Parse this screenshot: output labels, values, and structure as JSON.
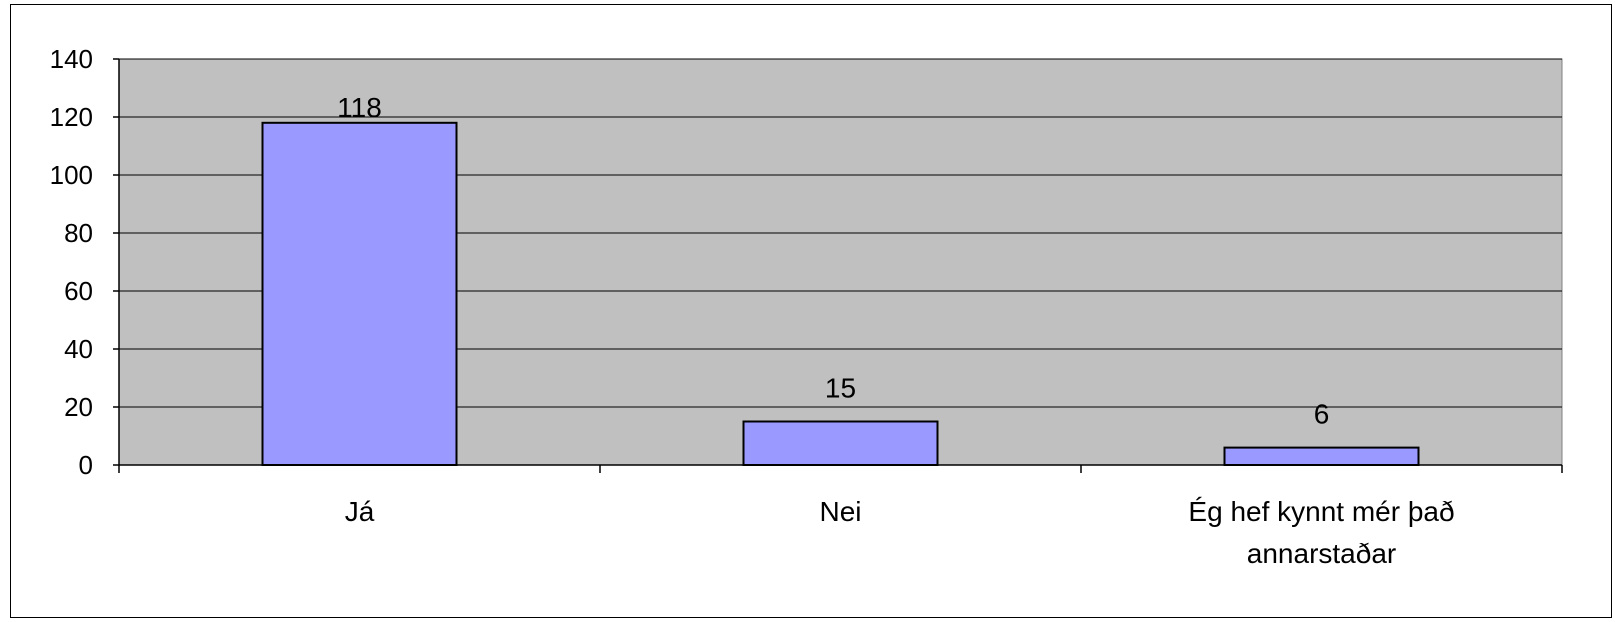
{
  "chart_data": {
    "type": "bar",
    "categories": [
      "Já",
      "Nei",
      "Ég hef kynnt mér það annarstaðar"
    ],
    "category_lines": [
      [
        "Já"
      ],
      [
        "Nei"
      ],
      [
        "Ég hef kynnt mér það",
        "annarstaðar"
      ]
    ],
    "values": [
      118,
      15,
      6
    ],
    "data_labels": [
      "118",
      "15",
      "6"
    ],
    "ylim": [
      0,
      140
    ],
    "y_ticks": [
      0,
      20,
      40,
      60,
      80,
      100,
      120,
      140
    ],
    "grid": true,
    "legend": "none",
    "title": "",
    "xlabel": "",
    "ylabel": ""
  },
  "colors": {
    "plot_background": "#c0c0c0",
    "bar_fill": "#9999ff",
    "bar_stroke": "#000000",
    "grid": "#000000"
  }
}
